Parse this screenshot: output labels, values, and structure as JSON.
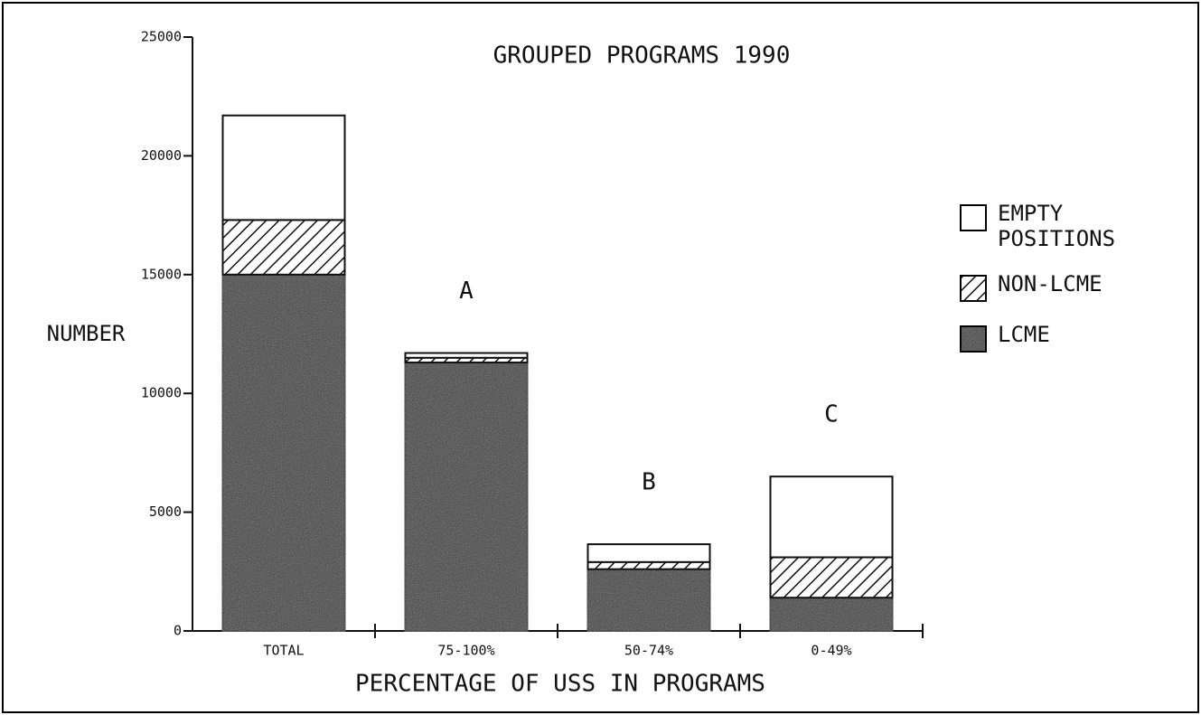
{
  "chart_data": {
    "type": "stacked_bar",
    "title": "GROUPED PROGRAMS 1990",
    "x_label": "PERCENTAGE OF USS IN PROGRAMS",
    "y_label": "NUMBER",
    "categories": [
      "TOTAL",
      "75-100%",
      "50-74%",
      "0-49%"
    ],
    "series": [
      {
        "name": "LCME",
        "color": "#333333",
        "values": [
          15000,
          11300,
          2600,
          1400
        ]
      },
      {
        "name": "NON-LCME",
        "color": "#ffffff",
        "pattern": "hatch",
        "values": [
          2300,
          200,
          300,
          1700
        ]
      },
      {
        "name": "EMPTY POSITIONS",
        "color": "#ffffff",
        "values": [
          4400,
          200,
          750,
          3400
        ]
      }
    ],
    "annotations": [
      "A",
      "B",
      "C"
    ],
    "ylim": [
      0,
      25000
    ],
    "yticks": [
      0,
      5000,
      10000,
      15000,
      20000,
      25000
    ],
    "legend": "right"
  }
}
